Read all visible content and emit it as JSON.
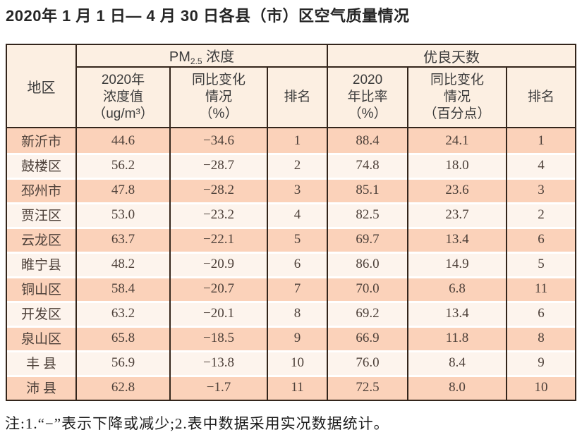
{
  "page": {
    "title": "2020年 1 月 1 日— 4 月 30 日各县（市）区空气质量情况",
    "footnote": "注:1.“−”表示下降或减少;2.表中数据采用实况数据统计。"
  },
  "table": {
    "region_header": "地区",
    "group1": {
      "prefix": "PM",
      "sub": "2.5",
      "suffix": "浓度"
    },
    "group2": "优良天数",
    "subheaders": [
      "2020年\n浓度值\n（ug/m³）",
      "同比变化\n情况\n（%）",
      "排名",
      "2020\n年比率\n（%）",
      "同比变化\n情况\n（百分点）",
      "排名"
    ],
    "rows": [
      [
        "新沂市",
        "44.6",
        "−34.6",
        "1",
        "88.4",
        "24.1",
        "1"
      ],
      [
        "鼓楼区",
        "56.2",
        "−28.7",
        "2",
        "74.8",
        "18.0",
        "4"
      ],
      [
        "邳州市",
        "47.8",
        "−28.2",
        "3",
        "85.1",
        "23.6",
        "3"
      ],
      [
        "贾汪区",
        "53.0",
        "−23.2",
        "4",
        "82.5",
        "23.7",
        "2"
      ],
      [
        "云龙区",
        "63.7",
        "−22.1",
        "5",
        "69.7",
        "13.4",
        "6"
      ],
      [
        "睢宁县",
        "48.2",
        "−20.9",
        "6",
        "86.0",
        "14.9",
        "5"
      ],
      [
        "铜山区",
        "58.4",
        "−20.7",
        "7",
        "70.0",
        "6.8",
        "11"
      ],
      [
        "开发区",
        "63.2",
        "−20.1",
        "8",
        "69.2",
        "13.4",
        "6"
      ],
      [
        "泉山区",
        "65.8",
        "−18.5",
        "9",
        "66.9",
        "11.8",
        "8"
      ],
      [
        "丰 县",
        "56.9",
        "−13.8",
        "10",
        "76.0",
        "8.4",
        "9"
      ],
      [
        "沛 县",
        "62.8",
        "−1.7",
        "11",
        "72.5",
        "8.0",
        "10"
      ]
    ]
  },
  "colors": {
    "row_dark": "#fbd2ba",
    "row_light": "#fdf4ed",
    "header_bg": "#fcefe2",
    "border": "#33251b"
  }
}
